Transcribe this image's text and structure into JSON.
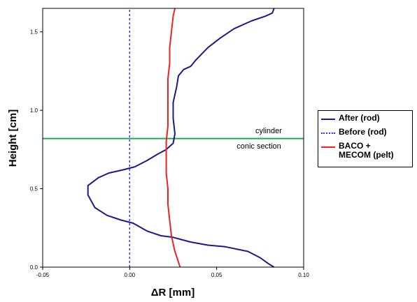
{
  "chart_data": {
    "type": "line",
    "xlabel": "ΔR [mm]",
    "ylabel": "Height [cm]",
    "xlim": [
      -0.05,
      0.1
    ],
    "ylim": [
      0.0,
      1.65
    ],
    "xticks": [
      "-0.05",
      "0.00",
      "0.05",
      "0.10"
    ],
    "yticks": [
      "0.0",
      "0.5",
      "1.0",
      "1.5"
    ],
    "annotations": {
      "reference_height": 0.82,
      "above_label": "cylinder",
      "below_label": "conic section"
    },
    "series": [
      {
        "name": "After (rod)",
        "color": "#1a1a8c",
        "style": "solid",
        "points": [
          [
            0.083,
            0.0
          ],
          [
            0.08,
            0.02
          ],
          [
            0.075,
            0.06
          ],
          [
            0.068,
            0.1
          ],
          [
            0.055,
            0.13
          ],
          [
            0.045,
            0.14
          ],
          [
            0.035,
            0.16
          ],
          [
            0.025,
            0.19
          ],
          [
            0.018,
            0.2
          ],
          [
            0.01,
            0.23
          ],
          [
            0.002,
            0.28
          ],
          [
            -0.005,
            0.3
          ],
          [
            -0.013,
            0.33
          ],
          [
            -0.02,
            0.38
          ],
          [
            -0.024,
            0.46
          ],
          [
            -0.024,
            0.52
          ],
          [
            -0.018,
            0.57
          ],
          [
            -0.012,
            0.6
          ],
          [
            -0.004,
            0.62
          ],
          [
            0.003,
            0.64
          ],
          [
            0.01,
            0.68
          ],
          [
            0.016,
            0.72
          ],
          [
            0.021,
            0.75
          ],
          [
            0.025,
            0.79
          ],
          [
            0.026,
            0.85
          ],
          [
            0.025,
            0.95
          ],
          [
            0.025,
            1.05
          ],
          [
            0.027,
            1.15
          ],
          [
            0.028,
            1.22
          ],
          [
            0.031,
            1.26
          ],
          [
            0.035,
            1.28
          ],
          [
            0.038,
            1.32
          ],
          [
            0.045,
            1.4
          ],
          [
            0.052,
            1.46
          ],
          [
            0.06,
            1.52
          ],
          [
            0.07,
            1.57
          ],
          [
            0.078,
            1.6
          ],
          [
            0.082,
            1.62
          ],
          [
            0.083,
            1.65
          ]
        ]
      },
      {
        "name": "Before (rod)",
        "color": "#3333ff",
        "style": "dotted",
        "points": [
          [
            0.0,
            0.0
          ],
          [
            0.0,
            1.65
          ]
        ]
      },
      {
        "name": "BACO + MECOM (pelt)",
        "legend_lines": [
          "BACO +",
          "MECOM (pelt)"
        ],
        "color": "#ee2222",
        "style": "solid",
        "points": [
          [
            0.029,
            0.0
          ],
          [
            0.026,
            0.1
          ],
          [
            0.024,
            0.2
          ],
          [
            0.023,
            0.3
          ],
          [
            0.022,
            0.4
          ],
          [
            0.022,
            0.5
          ],
          [
            0.021,
            0.6
          ],
          [
            0.021,
            0.7
          ],
          [
            0.021,
            0.8
          ],
          [
            0.022,
            0.9
          ],
          [
            0.022,
            1.0
          ],
          [
            0.022,
            1.1
          ],
          [
            0.022,
            1.2
          ],
          [
            0.023,
            1.3
          ],
          [
            0.023,
            1.4
          ],
          [
            0.024,
            1.5
          ],
          [
            0.025,
            1.6
          ],
          [
            0.026,
            1.65
          ]
        ]
      }
    ]
  }
}
